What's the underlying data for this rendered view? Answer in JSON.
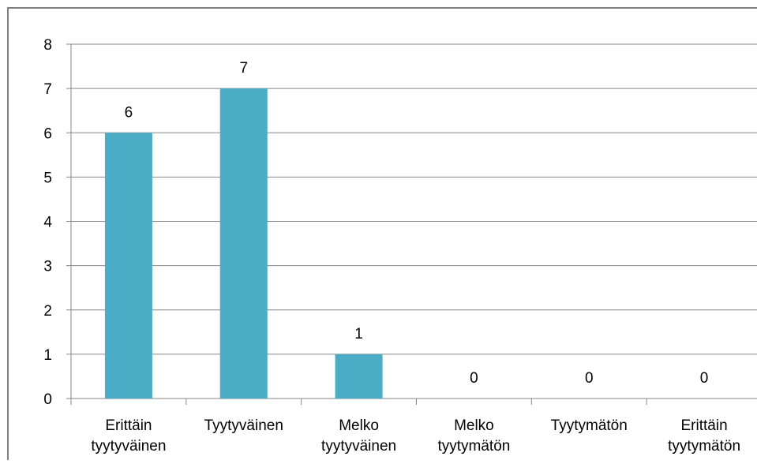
{
  "chart_data": {
    "type": "bar",
    "categories": [
      [
        "Erittäin",
        "tyytyväinen"
      ],
      [
        "Tyytyväinen"
      ],
      [
        "Melko",
        "tyytyväinen"
      ],
      [
        "Melko",
        "tyytymätön"
      ],
      [
        "Tyytymätön"
      ],
      [
        "Erittäin",
        "tyytymätön"
      ]
    ],
    "values": [
      6,
      7,
      1,
      0,
      0,
      0
    ],
    "data_labels": [
      "6",
      "7",
      "1",
      "0",
      "0",
      "0"
    ],
    "y_ticks": [
      "0",
      "1",
      "2",
      "3",
      "4",
      "5",
      "6",
      "7",
      "8"
    ],
    "ylim": [
      0,
      8
    ],
    "grid": true,
    "legend": "none",
    "colors": {
      "bar": "#4BACC6",
      "grid": "#868686",
      "axis": "#868686",
      "border": "#7f7f7f",
      "text": "#000000"
    }
  }
}
